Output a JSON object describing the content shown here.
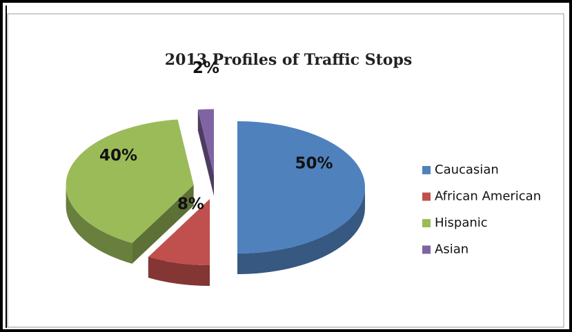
{
  "chart_data": {
    "type": "pie3d",
    "title": "2013 Profiles of Traffic Stops",
    "categories": [
      "Caucasian",
      "African American",
      "Hispanic",
      "Asian"
    ],
    "values": [
      50,
      8,
      40,
      2
    ],
    "value_labels": [
      "50%",
      "8%",
      "40%",
      "2%"
    ],
    "colors": [
      "#4f81bd",
      "#c0504d",
      "#9bbb59",
      "#8064a2"
    ],
    "legend": "right"
  }
}
